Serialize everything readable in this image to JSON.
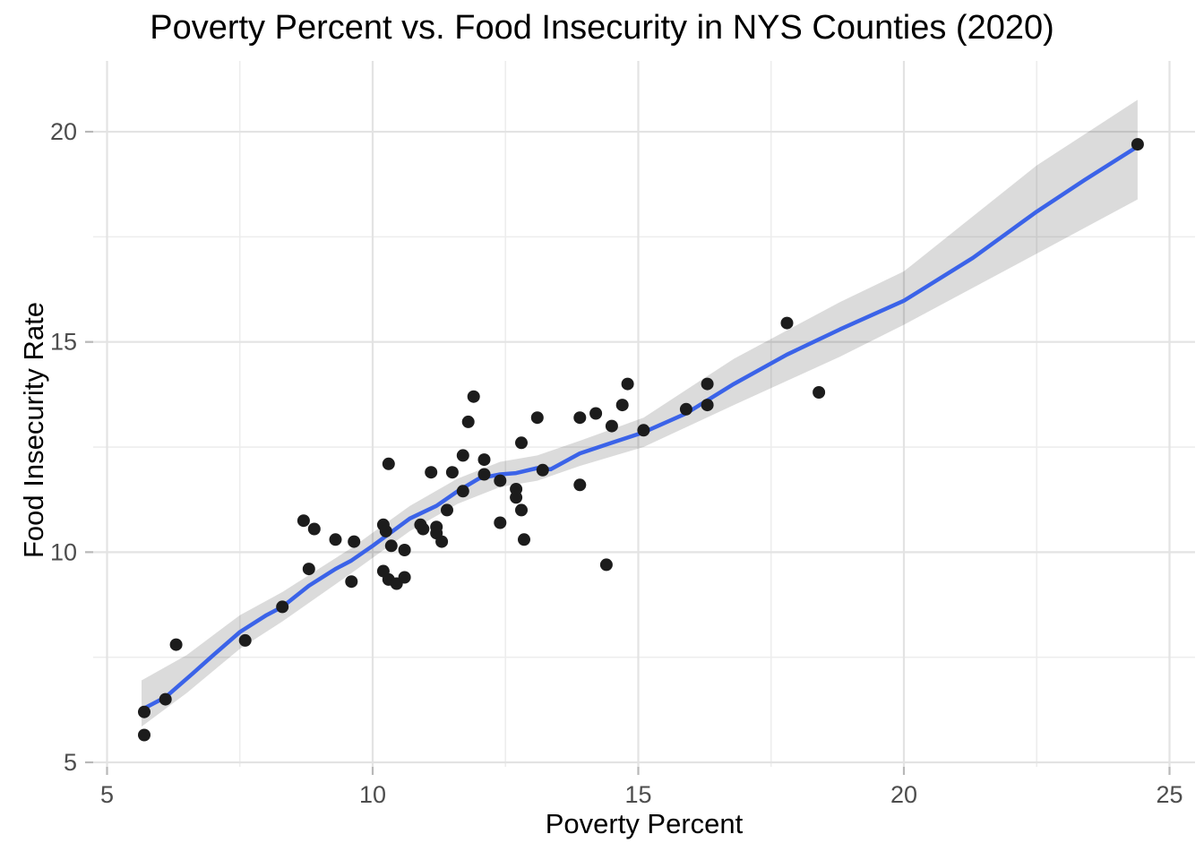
{
  "chart": {
    "title": "Poverty Percent vs. Food Insecurity in NYS Counties (2020)",
    "xlabel": "Poverty Percent",
    "ylabel": "Food Insecurity Rate"
  },
  "chart_data": {
    "type": "scatter",
    "title": "Poverty Percent vs. Food Insecurity in NYS Counties (2020)",
    "xlabel": "Poverty Percent",
    "ylabel": "Food Insecurity Rate",
    "xlim": [
      4.75,
      25.4
    ],
    "ylim": [
      4.9,
      21.7
    ],
    "x_ticks": [
      5,
      10,
      15,
      20,
      25
    ],
    "y_ticks": [
      5,
      10,
      15,
      20
    ],
    "x_minor_ticks": [
      7.5,
      12.5,
      17.5,
      22.5
    ],
    "y_minor_ticks": [
      7.5,
      12.5,
      17.5
    ],
    "grid": true,
    "legend": "none",
    "points": [
      [
        5.7,
        6.2
      ],
      [
        5.7,
        5.65
      ],
      [
        6.1,
        6.5
      ],
      [
        6.3,
        7.8
      ],
      [
        7.6,
        7.9
      ],
      [
        8.3,
        8.7
      ],
      [
        8.7,
        10.75
      ],
      [
        8.8,
        9.6
      ],
      [
        8.9,
        10.55
      ],
      [
        9.3,
        10.3
      ],
      [
        9.6,
        9.3
      ],
      [
        9.65,
        10.25
      ],
      [
        10.2,
        10.65
      ],
      [
        10.25,
        10.5
      ],
      [
        10.3,
        12.1
      ],
      [
        10.35,
        10.15
      ],
      [
        10.6,
        10.05
      ],
      [
        10.2,
        9.55
      ],
      [
        10.3,
        9.35
      ],
      [
        10.45,
        9.25
      ],
      [
        10.6,
        9.4
      ],
      [
        10.9,
        10.65
      ],
      [
        10.95,
        10.55
      ],
      [
        11.2,
        10.6
      ],
      [
        11.2,
        10.45
      ],
      [
        11.3,
        10.25
      ],
      [
        11.4,
        11.0
      ],
      [
        11.1,
        11.9
      ],
      [
        11.5,
        11.9
      ],
      [
        11.7,
        11.45
      ],
      [
        11.7,
        12.3
      ],
      [
        11.8,
        13.1
      ],
      [
        11.9,
        13.7
      ],
      [
        12.1,
        12.2
      ],
      [
        12.1,
        11.85
      ],
      [
        12.4,
        11.7
      ],
      [
        12.4,
        10.7
      ],
      [
        12.7,
        11.5
      ],
      [
        12.7,
        11.3
      ],
      [
        12.8,
        11.0
      ],
      [
        12.8,
        12.6
      ],
      [
        12.85,
        10.3
      ],
      [
        13.1,
        13.2
      ],
      [
        13.2,
        11.95
      ],
      [
        13.9,
        13.2
      ],
      [
        13.9,
        11.6
      ],
      [
        14.2,
        13.3
      ],
      [
        14.4,
        9.7
      ],
      [
        14.5,
        13.0
      ],
      [
        14.7,
        13.5
      ],
      [
        14.8,
        14.0
      ],
      [
        15.1,
        12.9
      ],
      [
        15.9,
        13.4
      ],
      [
        16.3,
        14.0
      ],
      [
        16.3,
        13.5
      ],
      [
        17.8,
        15.45
      ],
      [
        18.4,
        13.8
      ],
      [
        24.4,
        19.7
      ]
    ],
    "smooth_line": [
      [
        5.65,
        6.25
      ],
      [
        6.1,
        6.55
      ],
      [
        6.6,
        7.1
      ],
      [
        7.0,
        7.55
      ],
      [
        7.5,
        8.1
      ],
      [
        8.0,
        8.5
      ],
      [
        8.3,
        8.7
      ],
      [
        8.8,
        9.2
      ],
      [
        9.3,
        9.6
      ],
      [
        9.6,
        9.8
      ],
      [
        10.0,
        10.15
      ],
      [
        10.7,
        10.8
      ],
      [
        11.2,
        11.1
      ],
      [
        11.6,
        11.45
      ],
      [
        12.0,
        11.75
      ],
      [
        12.4,
        11.85
      ],
      [
        12.7,
        11.88
      ],
      [
        13.1,
        12.0
      ],
      [
        13.35,
        11.97
      ],
      [
        13.9,
        12.35
      ],
      [
        14.5,
        12.6
      ],
      [
        15.1,
        12.85
      ],
      [
        15.9,
        13.3
      ],
      [
        16.8,
        14.0
      ],
      [
        17.8,
        14.7
      ],
      [
        18.8,
        15.3
      ],
      [
        20.0,
        15.98
      ],
      [
        21.3,
        17.0
      ],
      [
        22.5,
        18.1
      ],
      [
        23.4,
        18.85
      ],
      [
        24.4,
        19.65
      ]
    ],
    "ribbon_upper": [
      [
        5.65,
        6.95
      ],
      [
        6.5,
        7.55
      ],
      [
        7.5,
        8.5
      ],
      [
        8.3,
        9.05
      ],
      [
        9.6,
        10.1
      ],
      [
        10.7,
        11.1
      ],
      [
        11.6,
        11.75
      ],
      [
        12.4,
        12.15
      ],
      [
        13.1,
        12.3
      ],
      [
        13.9,
        12.65
      ],
      [
        15.1,
        13.2
      ],
      [
        16.8,
        14.6
      ],
      [
        18.8,
        15.95
      ],
      [
        20.0,
        16.68
      ],
      [
        22.5,
        19.2
      ],
      [
        24.4,
        20.76
      ]
    ],
    "ribbon_lower": [
      [
        5.65,
        5.85
      ],
      [
        6.5,
        6.65
      ],
      [
        7.5,
        7.7
      ],
      [
        8.3,
        8.35
      ],
      [
        9.6,
        9.5
      ],
      [
        10.7,
        10.5
      ],
      [
        11.6,
        11.15
      ],
      [
        12.4,
        11.55
      ],
      [
        13.1,
        11.7
      ],
      [
        13.9,
        12.05
      ],
      [
        15.1,
        12.5
      ],
      [
        16.8,
        13.5
      ],
      [
        18.8,
        14.65
      ],
      [
        20.0,
        15.41
      ],
      [
        22.5,
        17.1
      ],
      [
        24.4,
        18.39
      ]
    ],
    "colors": {
      "point": "#1c1c1c",
      "smooth_line": "#3b63e8",
      "ribbon": "rgba(0,0,0,0.14)",
      "grid_major": "#e3e3e3",
      "grid_minor": "#ededed",
      "tick_mark": "#b8b8b8",
      "axis_text": "#4d4d4d",
      "title_text": "#000000"
    }
  }
}
